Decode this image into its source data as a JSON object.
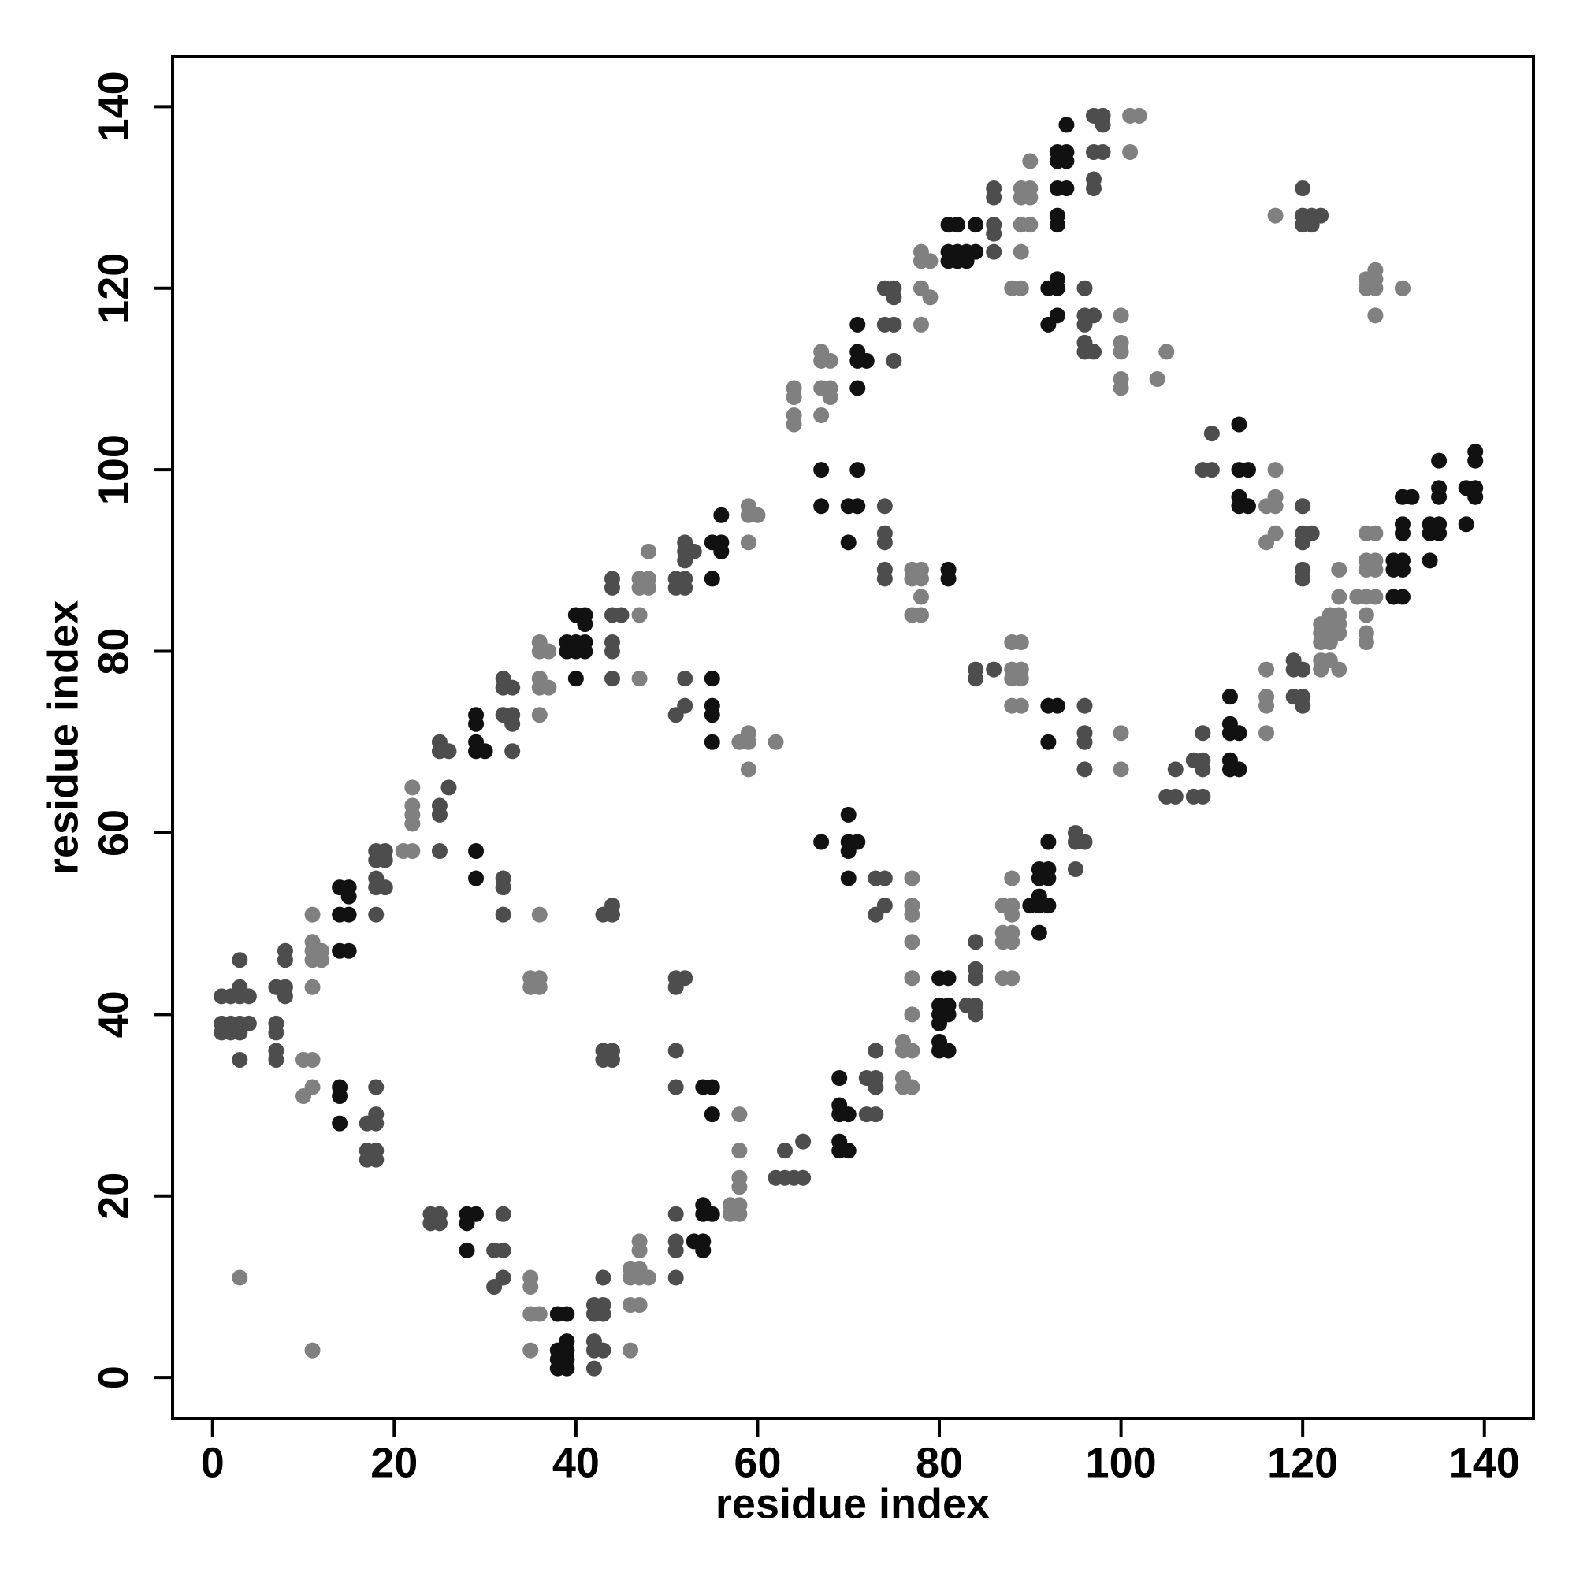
{
  "chart_data": {
    "type": "scatter",
    "x_label": "residue index",
    "y_label": "residue index",
    "xlim": [
      -4.4,
      145.4
    ],
    "ylim": [
      -4.5,
      145.5
    ],
    "xticks": [
      0,
      20,
      40,
      60,
      80,
      100,
      120,
      140
    ],
    "yticks": [
      0,
      20,
      40,
      60,
      80,
      100,
      120,
      140
    ],
    "grid": false,
    "series": [
      {
        "color": "#4d4d4d",
        "x": [
          1,
          1,
          1,
          2,
          2,
          3,
          3,
          3,
          3,
          3,
          3,
          4,
          4,
          2,
          7,
          7,
          7,
          7,
          7,
          8,
          8,
          8,
          8,
          17,
          17,
          17,
          18,
          18,
          18,
          18,
          18,
          18,
          18,
          18,
          18,
          18,
          19,
          19,
          19,
          24,
          24,
          25,
          25,
          25,
          25,
          25,
          25,
          25,
          26,
          26,
          31,
          31,
          32,
          32,
          32,
          32,
          32,
          32,
          32,
          32,
          32,
          33,
          33,
          33,
          33,
          42,
          42,
          42,
          42,
          42,
          43,
          43,
          43,
          43,
          43,
          43,
          43,
          44,
          44,
          44,
          44,
          44,
          44,
          44,
          44,
          44,
          44,
          45,
          51,
          51,
          51,
          51,
          51,
          51,
          51,
          51,
          52,
          51,
          52,
          52,
          51,
          51,
          52,
          52,
          52,
          52,
          52,
          53,
          62,
          63,
          63,
          64,
          65,
          65,
          72,
          72,
          73,
          73,
          73,
          73,
          73,
          73,
          74,
          74,
          74,
          74,
          74,
          74,
          74,
          74,
          74,
          75,
          75,
          75,
          75,
          83,
          84,
          84,
          84,
          84,
          84,
          84,
          84,
          86,
          86,
          86,
          86,
          86,
          86,
          95,
          95,
          95,
          96,
          96,
          96,
          96,
          96,
          96,
          96,
          96,
          96,
          96,
          97,
          97,
          97,
          97,
          97,
          97,
          98,
          98,
          98,
          105,
          106,
          106,
          108,
          108,
          109,
          109,
          109,
          109,
          109,
          110,
          110,
          119,
          119,
          119,
          120,
          120,
          120,
          120,
          120,
          120,
          120,
          120,
          120,
          120,
          120,
          121,
          121,
          121,
          122
        ],
        "y": [
          42,
          39,
          38,
          39,
          38,
          43,
          42,
          39,
          38,
          46,
          35,
          42,
          39,
          42,
          43,
          39,
          38,
          36,
          35,
          47,
          46,
          43,
          42,
          28,
          25,
          24,
          25,
          24,
          28,
          29,
          32,
          51,
          54,
          55,
          57,
          58,
          54,
          57,
          58,
          18,
          17,
          18,
          17,
          58,
          62,
          63,
          69,
          70,
          69,
          65,
          14,
          10,
          14,
          11,
          18,
          51,
          54,
          55,
          73,
          76,
          77,
          72,
          73,
          76,
          69,
          8,
          7,
          4,
          3,
          1,
          11,
          8,
          7,
          3,
          35,
          36,
          51,
          35,
          36,
          51,
          52,
          77,
          80,
          81,
          84,
          87,
          88,
          84,
          18,
          15,
          14,
          11,
          32,
          36,
          43,
          44,
          44,
          73,
          74,
          77,
          87,
          88,
          87,
          88,
          90,
          91,
          92,
          91,
          22,
          22,
          25,
          22,
          26,
          22,
          29,
          33,
          29,
          32,
          33,
          36,
          51,
          55,
          52,
          55,
          88,
          89,
          92,
          93,
          96,
          116,
          120,
          112,
          116,
          119,
          120,
          41,
          40,
          41,
          44,
          45,
          48,
          77,
          78,
          78,
          124,
          126,
          127,
          130,
          131,
          56,
          59,
          60,
          59,
          67,
          70,
          71,
          74,
          113,
          114,
          116,
          117,
          120,
          113,
          117,
          131,
          132,
          135,
          139,
          135,
          138,
          139,
          64,
          64,
          67,
          64,
          68,
          64,
          67,
          68,
          71,
          100,
          100,
          104,
          75,
          78,
          79,
          74,
          75,
          78,
          88,
          89,
          92,
          93,
          96,
          127,
          128,
          131,
          127,
          128,
          93,
          128
        ]
      },
      {
        "color": "#111111",
        "x": [
          14,
          14,
          14,
          14,
          14,
          15,
          15,
          15,
          15,
          14,
          28,
          28,
          28,
          29,
          29,
          29,
          29,
          29,
          29,
          29,
          30,
          38,
          38,
          38,
          38,
          39,
          39,
          39,
          39,
          39,
          39,
          39,
          40,
          40,
          40,
          40,
          41,
          41,
          41,
          41,
          53,
          54,
          54,
          54,
          54,
          54,
          55,
          55,
          55,
          55,
          55,
          55,
          55,
          55,
          55,
          56,
          56,
          56,
          67,
          67,
          67,
          69,
          69,
          69,
          69,
          69,
          70,
          70,
          70,
          70,
          70,
          70,
          70,
          70,
          71,
          71,
          71,
          71,
          71,
          71,
          71,
          72,
          80,
          80,
          80,
          80,
          80,
          80,
          81,
          81,
          81,
          81,
          81,
          81,
          81,
          81,
          81,
          82,
          82,
          82,
          83,
          83,
          84,
          84,
          90,
          91,
          91,
          91,
          91,
          91,
          92,
          92,
          92,
          92,
          92,
          92,
          92,
          92,
          93,
          93,
          93,
          93,
          93,
          93,
          93,
          93,
          93,
          94,
          94,
          94,
          94,
          112,
          112,
          112,
          112,
          112,
          113,
          113,
          113,
          113,
          113,
          113,
          114,
          114,
          130,
          130,
          130,
          131,
          131,
          131,
          131,
          131,
          131,
          132,
          134,
          134,
          134,
          135,
          135,
          135,
          135,
          135,
          138,
          138,
          139,
          139,
          139,
          139
        ],
        "y": [
          32,
          31,
          28,
          51,
          54,
          54,
          53,
          51,
          47,
          47,
          18,
          17,
          14,
          18,
          69,
          70,
          72,
          73,
          58,
          55,
          69,
          7,
          3,
          2,
          1,
          7,
          4,
          3,
          2,
          1,
          80,
          81,
          80,
          81,
          84,
          77,
          80,
          81,
          83,
          84,
          15,
          15,
          14,
          18,
          19,
          32,
          32,
          29,
          18,
          73,
          74,
          77,
          70,
          88,
          92,
          92,
          91,
          95,
          59,
          96,
          100,
          25,
          26,
          29,
          30,
          33,
          25,
          29,
          55,
          58,
          59,
          62,
          92,
          96,
          96,
          59,
          100,
          109,
          112,
          113,
          116,
          112,
          36,
          37,
          39,
          40,
          41,
          44,
          36,
          40,
          41,
          44,
          88,
          89,
          123,
          124,
          127,
          123,
          124,
          127,
          123,
          124,
          124,
          127,
          52,
          49,
          52,
          53,
          55,
          56,
          52,
          55,
          56,
          59,
          74,
          70,
          116,
          120,
          74,
          117,
          120,
          121,
          127,
          128,
          131,
          134,
          135,
          131,
          134,
          135,
          138,
          67,
          68,
          71,
          72,
          75,
          67,
          71,
          100,
          105,
          96,
          97,
          96,
          100,
          86,
          89,
          90,
          86,
          89,
          90,
          93,
          94,
          97,
          97,
          90,
          93,
          94,
          93,
          94,
          97,
          98,
          101,
          94,
          98,
          97,
          98,
          101,
          102
        ]
      },
      {
        "color": "#808080",
        "x": [
          3,
          11,
          10,
          10,
          11,
          11,
          11,
          11,
          11,
          11,
          11,
          12,
          12,
          21,
          22,
          22,
          22,
          22,
          22,
          35,
          35,
          35,
          35,
          35,
          35,
          36,
          36,
          36,
          36,
          36,
          36,
          36,
          36,
          37,
          37,
          36,
          46,
          46,
          46,
          46,
          47,
          47,
          47,
          47,
          47,
          48,
          47,
          47,
          47,
          47,
          48,
          48,
          48,
          57,
          57,
          58,
          58,
          58,
          58,
          58,
          58,
          58,
          59,
          59,
          59,
          59,
          59,
          59,
          60,
          62,
          64,
          64,
          64,
          64,
          67,
          67,
          67,
          67,
          68,
          68,
          68,
          76,
          76,
          76,
          76,
          77,
          77,
          77,
          77,
          77,
          77,
          77,
          77,
          77,
          77,
          77,
          78,
          78,
          78,
          78,
          78,
          78,
          78,
          78,
          79,
          79,
          87,
          87,
          87,
          87,
          88,
          88,
          88,
          88,
          88,
          88,
          88,
          88,
          88,
          88,
          89,
          89,
          89,
          89,
          88,
          89,
          89,
          89,
          89,
          89,
          90,
          90,
          90,
          90,
          100,
          100,
          100,
          100,
          100,
          100,
          100,
          101,
          101,
          102,
          104,
          105,
          116,
          116,
          116,
          116,
          116,
          116,
          117,
          117,
          117,
          117,
          117,
          122,
          122,
          122,
          122,
          122,
          123,
          123,
          123,
          123,
          123,
          124,
          124,
          124,
          124,
          124,
          124,
          126,
          127,
          127,
          127,
          127,
          127,
          127,
          127,
          128,
          128,
          128,
          128,
          127,
          127,
          128,
          128,
          128,
          128,
          131
        ],
        "y": [
          11,
          3,
          35,
          31,
          35,
          32,
          43,
          46,
          47,
          48,
          51,
          47,
          46,
          58,
          58,
          61,
          62,
          63,
          65,
          11,
          10,
          7,
          3,
          43,
          44,
          43,
          44,
          51,
          73,
          76,
          77,
          80,
          81,
          76,
          80,
          7,
          3,
          8,
          11,
          12,
          8,
          11,
          12,
          14,
          15,
          11,
          77,
          84,
          87,
          88,
          87,
          88,
          91,
          18,
          19,
          18,
          19,
          21,
          22,
          25,
          29,
          70,
          70,
          67,
          71,
          92,
          95,
          96,
          95,
          70,
          105,
          106,
          108,
          109,
          106,
          109,
          112,
          113,
          108,
          109,
          112,
          33,
          32,
          36,
          37,
          36,
          32,
          40,
          44,
          48,
          51,
          52,
          55,
          84,
          88,
          89,
          84,
          86,
          88,
          89,
          116,
          120,
          123,
          124,
          119,
          123,
          44,
          48,
          49,
          52,
          44,
          48,
          49,
          51,
          52,
          55,
          74,
          77,
          78,
          81,
          74,
          77,
          78,
          81,
          120,
          120,
          124,
          127,
          130,
          131,
          127,
          130,
          131,
          134,
          67,
          71,
          109,
          110,
          113,
          114,
          117,
          135,
          139,
          139,
          110,
          113,
          71,
          74,
          75,
          78,
          92,
          96,
          93,
          96,
          97,
          100,
          128,
          78,
          79,
          81,
          82,
          83,
          79,
          81,
          82,
          83,
          84,
          78,
          82,
          83,
          84,
          86,
          89,
          86,
          81,
          82,
          84,
          86,
          89,
          90,
          93,
          86,
          89,
          90,
          93,
          120,
          121,
          117,
          120,
          121,
          122,
          120
        ]
      }
    ]
  }
}
